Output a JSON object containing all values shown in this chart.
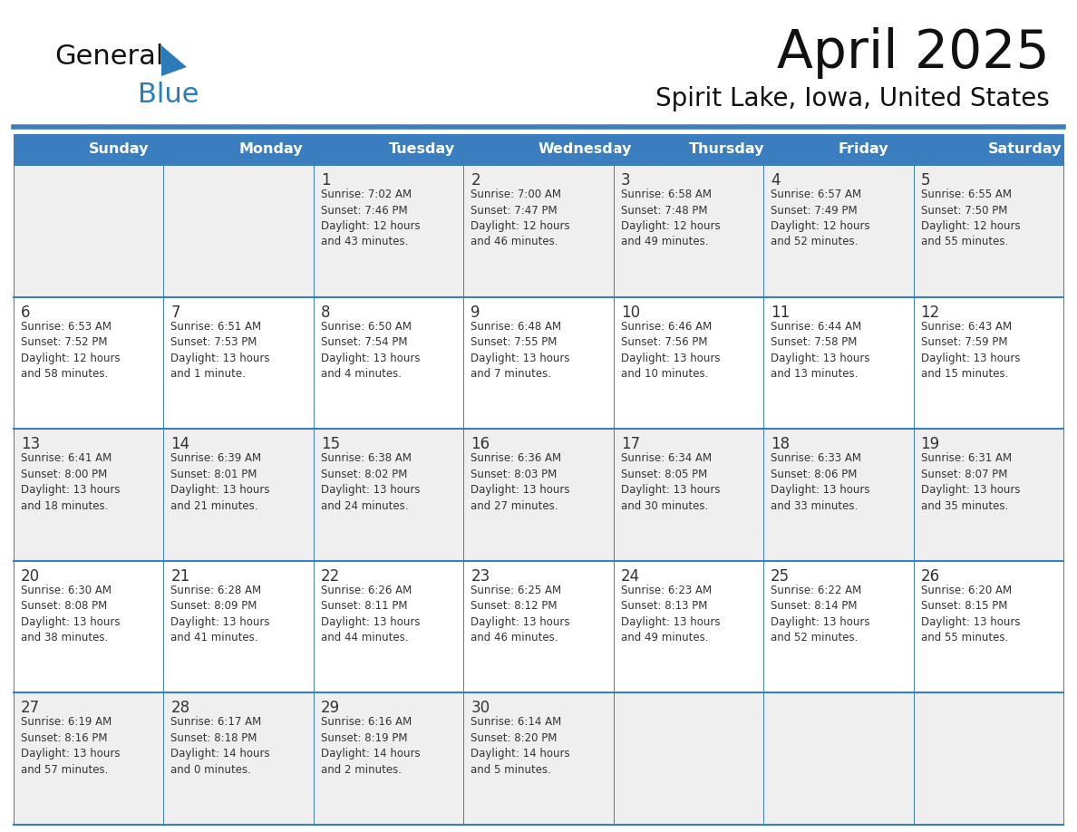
{
  "title": "April 2025",
  "subtitle": "Spirit Lake, Iowa, United States",
  "header_color": "#3A7EBF",
  "header_text_color": "#FFFFFF",
  "cell_bg_odd": "#EFEFEF",
  "cell_bg_even": "#FFFFFF",
  "border_color": "#3A7EBF",
  "row_line_color": "#3A7EBF",
  "text_color": "#333333",
  "days_of_week": [
    "Sunday",
    "Monday",
    "Tuesday",
    "Wednesday",
    "Thursday",
    "Friday",
    "Saturday"
  ],
  "weeks": [
    [
      {
        "day": "",
        "info": ""
      },
      {
        "day": "",
        "info": ""
      },
      {
        "day": "1",
        "info": "Sunrise: 7:02 AM\nSunset: 7:46 PM\nDaylight: 12 hours\nand 43 minutes."
      },
      {
        "day": "2",
        "info": "Sunrise: 7:00 AM\nSunset: 7:47 PM\nDaylight: 12 hours\nand 46 minutes."
      },
      {
        "day": "3",
        "info": "Sunrise: 6:58 AM\nSunset: 7:48 PM\nDaylight: 12 hours\nand 49 minutes."
      },
      {
        "day": "4",
        "info": "Sunrise: 6:57 AM\nSunset: 7:49 PM\nDaylight: 12 hours\nand 52 minutes."
      },
      {
        "day": "5",
        "info": "Sunrise: 6:55 AM\nSunset: 7:50 PM\nDaylight: 12 hours\nand 55 minutes."
      }
    ],
    [
      {
        "day": "6",
        "info": "Sunrise: 6:53 AM\nSunset: 7:52 PM\nDaylight: 12 hours\nand 58 minutes."
      },
      {
        "day": "7",
        "info": "Sunrise: 6:51 AM\nSunset: 7:53 PM\nDaylight: 13 hours\nand 1 minute."
      },
      {
        "day": "8",
        "info": "Sunrise: 6:50 AM\nSunset: 7:54 PM\nDaylight: 13 hours\nand 4 minutes."
      },
      {
        "day": "9",
        "info": "Sunrise: 6:48 AM\nSunset: 7:55 PM\nDaylight: 13 hours\nand 7 minutes."
      },
      {
        "day": "10",
        "info": "Sunrise: 6:46 AM\nSunset: 7:56 PM\nDaylight: 13 hours\nand 10 minutes."
      },
      {
        "day": "11",
        "info": "Sunrise: 6:44 AM\nSunset: 7:58 PM\nDaylight: 13 hours\nand 13 minutes."
      },
      {
        "day": "12",
        "info": "Sunrise: 6:43 AM\nSunset: 7:59 PM\nDaylight: 13 hours\nand 15 minutes."
      }
    ],
    [
      {
        "day": "13",
        "info": "Sunrise: 6:41 AM\nSunset: 8:00 PM\nDaylight: 13 hours\nand 18 minutes."
      },
      {
        "day": "14",
        "info": "Sunrise: 6:39 AM\nSunset: 8:01 PM\nDaylight: 13 hours\nand 21 minutes."
      },
      {
        "day": "15",
        "info": "Sunrise: 6:38 AM\nSunset: 8:02 PM\nDaylight: 13 hours\nand 24 minutes."
      },
      {
        "day": "16",
        "info": "Sunrise: 6:36 AM\nSunset: 8:03 PM\nDaylight: 13 hours\nand 27 minutes."
      },
      {
        "day": "17",
        "info": "Sunrise: 6:34 AM\nSunset: 8:05 PM\nDaylight: 13 hours\nand 30 minutes."
      },
      {
        "day": "18",
        "info": "Sunrise: 6:33 AM\nSunset: 8:06 PM\nDaylight: 13 hours\nand 33 minutes."
      },
      {
        "day": "19",
        "info": "Sunrise: 6:31 AM\nSunset: 8:07 PM\nDaylight: 13 hours\nand 35 minutes."
      }
    ],
    [
      {
        "day": "20",
        "info": "Sunrise: 6:30 AM\nSunset: 8:08 PM\nDaylight: 13 hours\nand 38 minutes."
      },
      {
        "day": "21",
        "info": "Sunrise: 6:28 AM\nSunset: 8:09 PM\nDaylight: 13 hours\nand 41 minutes."
      },
      {
        "day": "22",
        "info": "Sunrise: 6:26 AM\nSunset: 8:11 PM\nDaylight: 13 hours\nand 44 minutes."
      },
      {
        "day": "23",
        "info": "Sunrise: 6:25 AM\nSunset: 8:12 PM\nDaylight: 13 hours\nand 46 minutes."
      },
      {
        "day": "24",
        "info": "Sunrise: 6:23 AM\nSunset: 8:13 PM\nDaylight: 13 hours\nand 49 minutes."
      },
      {
        "day": "25",
        "info": "Sunrise: 6:22 AM\nSunset: 8:14 PM\nDaylight: 13 hours\nand 52 minutes."
      },
      {
        "day": "26",
        "info": "Sunrise: 6:20 AM\nSunset: 8:15 PM\nDaylight: 13 hours\nand 55 minutes."
      }
    ],
    [
      {
        "day": "27",
        "info": "Sunrise: 6:19 AM\nSunset: 8:16 PM\nDaylight: 13 hours\nand 57 minutes."
      },
      {
        "day": "28",
        "info": "Sunrise: 6:17 AM\nSunset: 8:18 PM\nDaylight: 14 hours\nand 0 minutes."
      },
      {
        "day": "29",
        "info": "Sunrise: 6:16 AM\nSunset: 8:19 PM\nDaylight: 14 hours\nand 2 minutes."
      },
      {
        "day": "30",
        "info": "Sunrise: 6:14 AM\nSunset: 8:20 PM\nDaylight: 14 hours\nand 5 minutes."
      },
      {
        "day": "",
        "info": ""
      },
      {
        "day": "",
        "info": ""
      },
      {
        "day": "",
        "info": ""
      }
    ]
  ],
  "logo_text_general": "General",
  "logo_text_blue": "Blue",
  "logo_color_general": "#111111",
  "logo_color_blue": "#2B7BB9"
}
